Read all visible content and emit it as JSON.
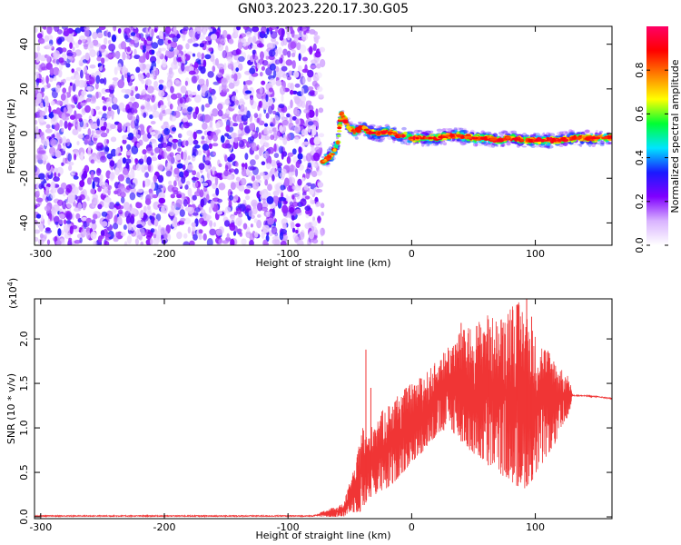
{
  "title": "GN03.2023.220.17.30.G05",
  "chart_data": [
    {
      "type": "heatmap",
      "title": "GN03.2023.220.17.30.G05",
      "xlabel": "Height of straight line (km)",
      "ylabel": "Frequency (Hz)",
      "xlim": [
        -305,
        162
      ],
      "ylim": [
        -50,
        48
      ],
      "x_ticks": [
        -300,
        -200,
        -100,
        0,
        100
      ],
      "x_tick_labels": [
        "-300",
        "-200",
        "-100",
        "0",
        "100"
      ],
      "y_ticks": [
        -40,
        -20,
        0,
        20,
        40
      ],
      "y_tick_labels": [
        "-40",
        "-20",
        "0",
        "20",
        "40"
      ],
      "noise_region_x": [
        -305,
        -72
      ],
      "ridge": {
        "x": [
          -72,
          -68,
          -64,
          -60,
          -57,
          -54,
          -50,
          -45,
          -40,
          -35,
          -30,
          -25,
          -20,
          -15,
          -10,
          -5,
          0,
          10,
          20,
          30,
          40,
          50,
          60,
          70,
          80,
          90,
          100,
          110,
          120,
          130,
          140,
          150,
          162
        ],
        "frequency": [
          -13,
          -11,
          -9,
          -5,
          9,
          6,
          2,
          1,
          3,
          1,
          0,
          0,
          1,
          0,
          -1,
          -1,
          -2,
          -2,
          -2,
          -1,
          -1,
          -2,
          -2,
          -3,
          -2,
          -3,
          -3,
          -3,
          -3,
          -2,
          -2,
          -2,
          -2
        ]
      },
      "colorbar": {
        "label": "Normalized spectral amplitude",
        "range": [
          0,
          1
        ],
        "ticks": [
          0.0,
          0.2,
          0.4,
          0.6,
          0.8
        ],
        "tick_labels": [
          "0.0",
          "0.2",
          "0.4",
          "0.6",
          "0.8"
        ],
        "colors": [
          "#ffffff",
          "#d9b3ff",
          "#8000ff",
          "#1a1aff",
          "#00e5ff",
          "#00ff33",
          "#ffff00",
          "#ff8000",
          "#ff0000",
          "#ff0066"
        ]
      },
      "grid": false
    },
    {
      "type": "line",
      "xlabel": "Height of straight line (km)",
      "ylabel": "SNR (10 * v/v)",
      "scale_note": "(x10",
      "scale_exp": "4",
      "scale_close": ")",
      "xlim": [
        -305,
        162
      ],
      "ylim": [
        -0.02,
        2.45
      ],
      "x_ticks": [
        -300,
        -200,
        -100,
        0,
        100
      ],
      "x_tick_labels": [
        "-300",
        "-200",
        "-100",
        "0",
        "100"
      ],
      "y_ticks": [
        0.0,
        0.5,
        1.0,
        1.5,
        2.0
      ],
      "y_tick_labels": [
        "0.0",
        "0.5",
        "1.0",
        "1.5",
        "2.0"
      ],
      "series": [
        {
          "color": "#f03535",
          "envelope": {
            "x": [
              -305,
              -80,
              -55,
              -50,
              -45,
              -40,
              -36,
              -30,
              -20,
              -10,
              0,
              10,
              20,
              30,
              40,
              50,
              60,
              70,
              80,
              90,
              100,
              110,
              120,
              128,
              130,
              140,
              150,
              162
            ],
            "low": [
              0.0,
              0.0,
              0.0,
              0.05,
              0.05,
              0.05,
              0.2,
              0.25,
              0.3,
              0.45,
              0.6,
              0.75,
              0.9,
              1.0,
              0.85,
              0.7,
              0.6,
              0.5,
              0.4,
              0.3,
              0.45,
              0.7,
              0.9,
              1.2,
              1.35,
              1.36,
              1.35,
              1.33
            ],
            "high": [
              0.02,
              0.02,
              0.15,
              0.4,
              0.6,
              1.05,
              0.9,
              1.1,
              1.25,
              1.4,
              1.5,
              1.6,
              1.75,
              1.95,
              2.1,
              2.15,
              2.3,
              2.2,
              2.45,
              2.4,
              2.05,
              1.9,
              1.7,
              1.55,
              1.38,
              1.36,
              1.35,
              1.33
            ]
          },
          "peaks": [
            {
              "x": -37,
              "y": 1.88
            },
            {
              "x": -33,
              "y": 1.45
            },
            {
              "x": 93,
              "y": 2.45
            },
            {
              "x": 85,
              "y": 2.38
            },
            {
              "x": 97,
              "y": 2.25
            },
            {
              "x": 40,
              "y": 2.18
            },
            {
              "x": 62,
              "y": 2.22
            }
          ]
        }
      ],
      "grid": false
    }
  ]
}
